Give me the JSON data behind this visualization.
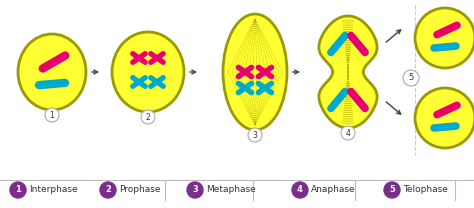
{
  "background_color": "#ffffff",
  "cell_color": "#ffff33",
  "cell_edge_color": "#999900",
  "pink_color": "#e8006e",
  "cyan_color": "#00aacc",
  "purple_color": "#7b2d8b",
  "arrow_color": "#444444",
  "legend_line_color": "#bbbbbb",
  "stages": [
    "Interphase",
    "Prophase",
    "Metaphase",
    "Anaphase",
    "Telophase"
  ],
  "fig_width": 4.74,
  "fig_height": 2.08,
  "dpi": 100
}
